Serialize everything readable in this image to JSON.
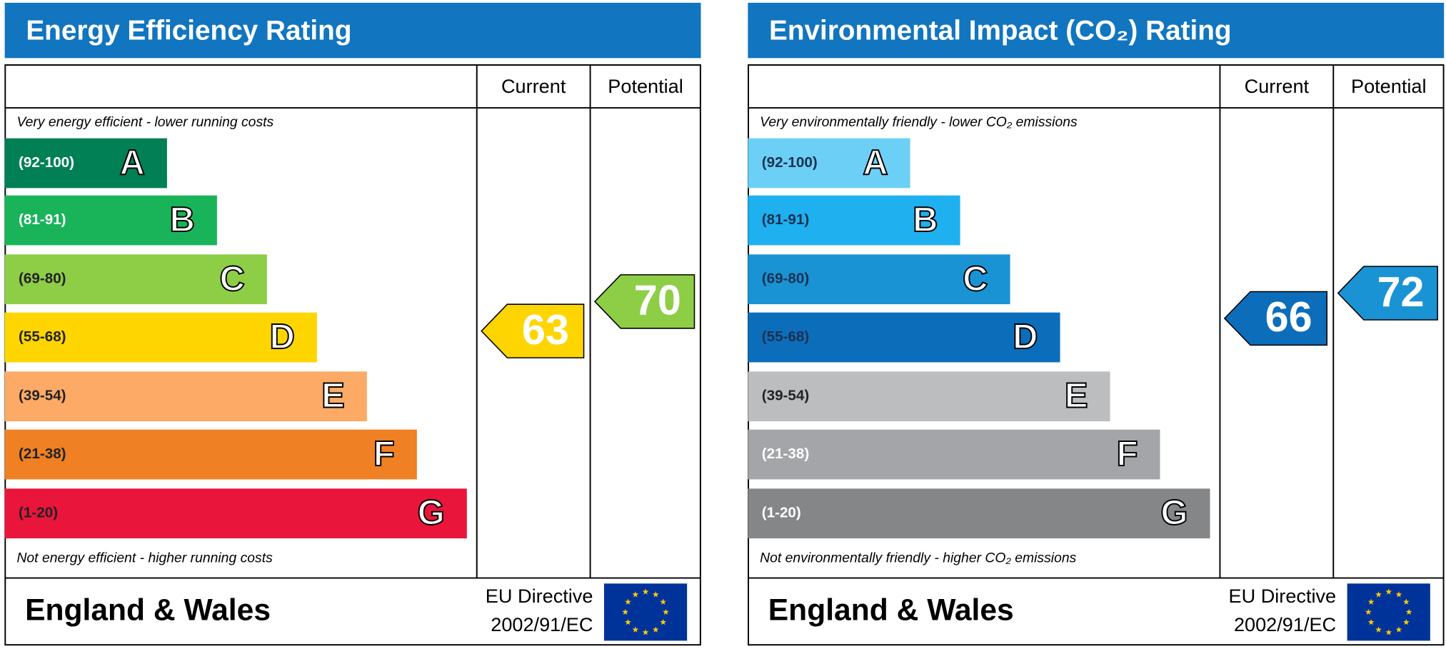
{
  "panels": [
    {
      "title": "Energy Efficiency Rating",
      "columns": [
        "Current",
        "Potential"
      ],
      "top_note": "Very energy efficient - lower running costs",
      "bands": [
        {
          "range": "(92-100)",
          "letter": "A",
          "color": "#008054",
          "text_color": "#ffffff"
        },
        {
          "range": "(81-91)",
          "letter": "B",
          "color": "#19b459",
          "text_color": "#ffffff"
        },
        {
          "range": "(69-80)",
          "letter": "C",
          "color": "#8dce46",
          "text_color": "#222222"
        },
        {
          "range": "(55-68)",
          "letter": "D",
          "color": "#ffd500",
          "text_color": "#222222"
        },
        {
          "range": "(39-54)",
          "letter": "E",
          "color": "#fcaa65",
          "text_color": "#222222"
        },
        {
          "range": "(21-38)",
          "letter": "F",
          "color": "#ef8023",
          "text_color": "#222222"
        },
        {
          "range": "(1-20)",
          "letter": "G",
          "color": "#e9153b",
          "text_color": "#222222"
        }
      ],
      "current": {
        "value": 63,
        "color": "#ffd500"
      },
      "potential": {
        "value": 70,
        "color": "#8dce46"
      },
      "bottom_note": "Not energy efficient - higher running costs",
      "region": "England & Wales",
      "directive": [
        "EU Directive",
        "2002/91/EC"
      ]
    },
    {
      "title": "Environmental Impact (CO₂) Rating",
      "columns": [
        "Current",
        "Potential"
      ],
      "top_note": "Very environmentally friendly - lower CO₂ emissions",
      "bands": [
        {
          "range": "(92-100)",
          "letter": "A",
          "color": "#6ccff6",
          "text_color": "#1a3050"
        },
        {
          "range": "(81-91)",
          "letter": "B",
          "color": "#1fb0ef",
          "text_color": "#1a3050"
        },
        {
          "range": "(69-80)",
          "letter": "C",
          "color": "#1a93d4",
          "text_color": "#1a3050"
        },
        {
          "range": "(55-68)",
          "letter": "D",
          "color": "#0c6ebb",
          "text_color": "#1a3050"
        },
        {
          "range": "(39-54)",
          "letter": "E",
          "color": "#bbbdbf",
          "text_color": "#222222"
        },
        {
          "range": "(21-38)",
          "letter": "F",
          "color": "#a3a5a8",
          "text_color": "#ffffff"
        },
        {
          "range": "(1-20)",
          "letter": "G",
          "color": "#848688",
          "text_color": "#ffffff"
        }
      ],
      "current": {
        "value": 66,
        "color": "#0c6ebb"
      },
      "potential": {
        "value": 72,
        "color": "#1a93d4"
      },
      "bottom_note": "Not environmentally friendly - higher CO₂ emissions",
      "region": "England & Wales",
      "directive": [
        "EU Directive",
        "2002/91/EC"
      ]
    }
  ]
}
